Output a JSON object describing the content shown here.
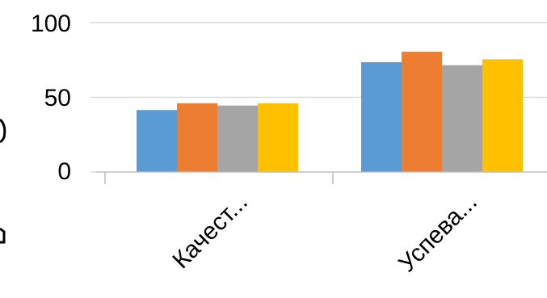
{
  "chart_data": {
    "type": "bar",
    "categories": [
      "Качест...",
      "Успева..."
    ],
    "series": [
      {
        "values": [
          41.5,
          73.5
        ],
        "color": "#5B9BD5"
      },
      {
        "values": [
          46.0,
          80.5
        ],
        "color": "#ED7D31"
      },
      {
        "values": [
          44.5,
          71.5
        ],
        "color": "#A5A5A5"
      },
      {
        "values": [
          46.0,
          75.5
        ],
        "color": "#FFC000"
      }
    ],
    "yticks": [
      "0",
      "50",
      "100"
    ],
    "ylim": [
      0,
      100
    ],
    "grid": true,
    "legend": "none",
    "title": "",
    "xlabel": "",
    "ylabel": ""
  }
}
